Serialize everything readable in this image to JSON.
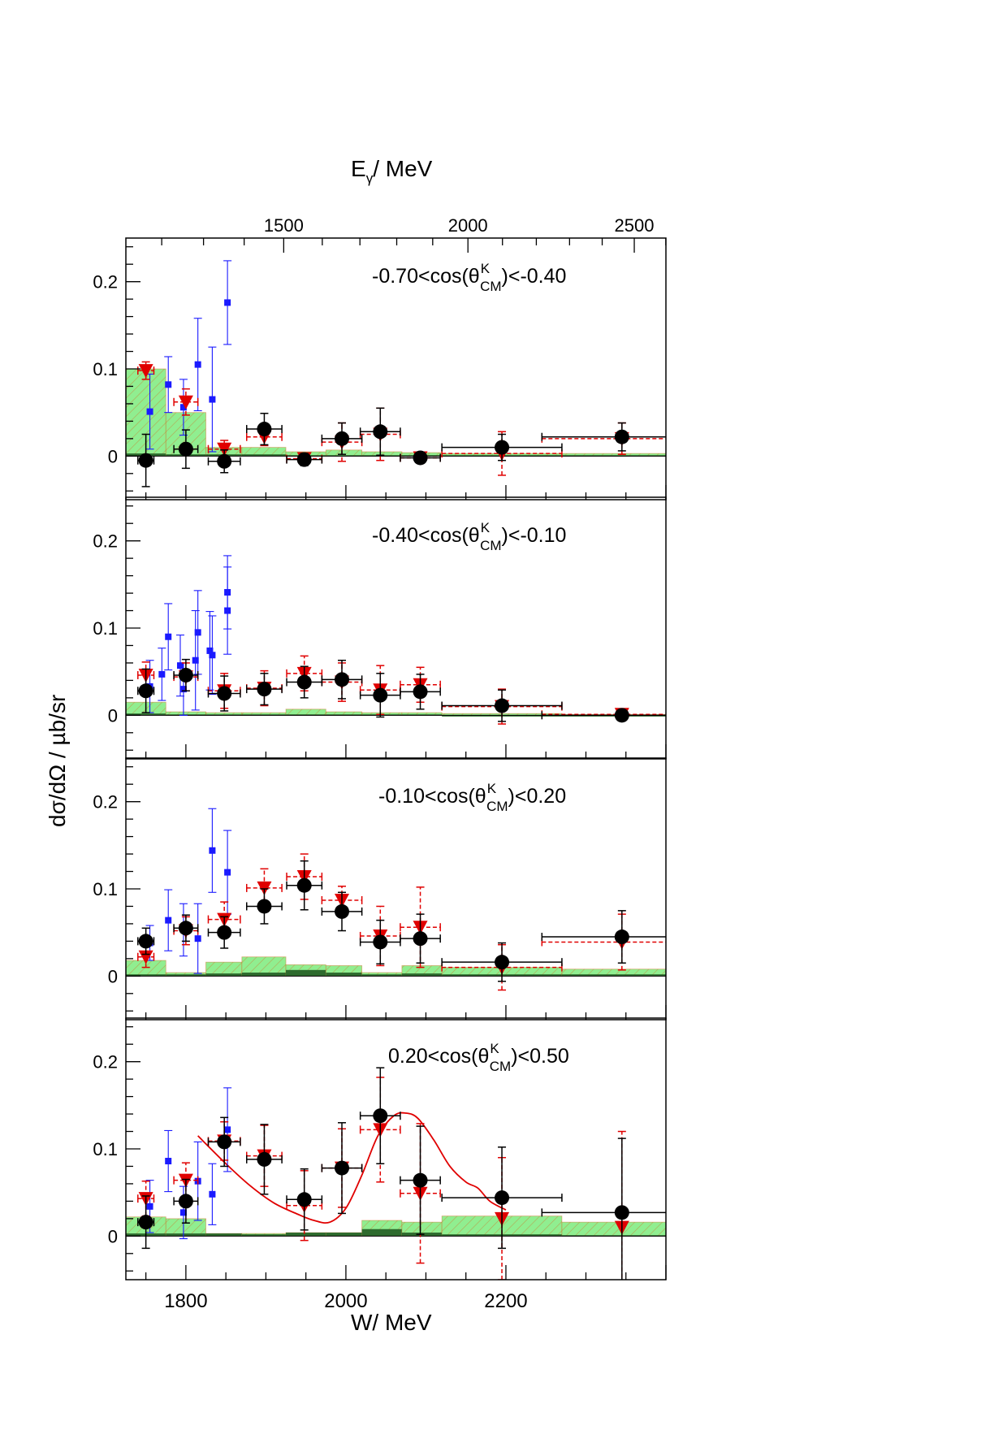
{
  "figure": {
    "top_axis_title_main": "E",
    "top_axis_title_sub": "γ",
    "top_axis_title_rest": "/ MeV",
    "x_axis_title": "W/ MeV",
    "y_axis_title": "dσ/dΩ / µb/sr",
    "top_axis_ticks": [
      "1500",
      "2000",
      "2500"
    ],
    "top_axis_tick_values": [
      1500,
      2000,
      2500
    ],
    "bottom_axis_ticks": [
      "1800",
      "2000",
      "2200"
    ],
    "bottom_axis_tick_values": [
      1800,
      2000,
      2200
    ],
    "y_tick_labels": [
      "0",
      "0.1",
      "0.2"
    ]
  },
  "colors": {
    "black_series": "#000000",
    "red_series": "#e00000",
    "blue_series": "#1a1aff",
    "syst_band_fill": "#90ee90",
    "syst_band_hatch": "#d2691e",
    "syst_band_dark": "#2e6b2e",
    "model_curve": "#e00000"
  },
  "chart_data": [
    {
      "type": "scatter",
      "panel_label": {
        "pre": "-0.70<cos(θ",
        "sup": "K",
        "sub": "CM",
        "post": ")<-0.40"
      },
      "xlim": [
        1725,
        2400
      ],
      "ylim": [
        -0.05,
        0.25
      ],
      "series": [
        {
          "marker": "circle",
          "color": "black",
          "x": [
            1750,
            1800,
            1848,
            1898,
            1948,
            1995,
            2043,
            2093,
            2195,
            2345
          ],
          "y": [
            -0.005,
            0.008,
            -0.006,
            0.031,
            -0.004,
            0.02,
            0.028,
            -0.002,
            0.01,
            0.022
          ],
          "xerr": [
            10,
            15,
            20,
            22,
            22,
            25,
            25,
            25,
            75,
            100
          ],
          "yerr": [
            0.03,
            0.022,
            0.013,
            0.018,
            0.007,
            0.018,
            0.027,
            0.005,
            0.015,
            0.016
          ]
        },
        {
          "marker": "triangle-down",
          "color": "red",
          "x": [
            1750,
            1800,
            1848,
            1898,
            1948,
            1995,
            2043,
            2093,
            2195,
            2345
          ],
          "y": [
            0.098,
            0.062,
            0.008,
            0.022,
            -0.003,
            0.016,
            0.025,
            -0.002,
            0.003,
            0.02
          ],
          "xerr": [
            10,
            15,
            20,
            22,
            22,
            25,
            25,
            25,
            75,
            100
          ],
          "yerr": [
            0.01,
            0.015,
            0.01,
            0.01,
            0.006,
            0.022,
            0.03,
            0.005,
            0.025,
            0.018
          ]
        },
        {
          "marker": "square",
          "color": "blue",
          "x": [
            1755,
            1778,
            1797,
            1815,
            1833,
            1852
          ],
          "y": [
            0.051,
            0.082,
            0.056,
            0.105,
            0.065,
            0.176
          ],
          "yerr": [
            0.043,
            0.032,
            0.032,
            0.053,
            0.06,
            0.048
          ]
        }
      ],
      "syst_band": {
        "edges": [
          1725,
          1775,
          1825,
          1870,
          1925,
          1975,
          2020,
          2070,
          2120,
          2270,
          2400
        ],
        "upper": [
          0.1,
          0.05,
          0.01,
          0.01,
          0.005,
          0.007,
          0.005,
          0.004,
          0.003,
          0.003
        ],
        "dark": [
          0.003,
          0.002,
          0.002,
          0.002,
          0.001,
          0.001,
          0.001,
          0.001,
          0.001,
          0.001
        ]
      },
      "model_curve": null
    },
    {
      "type": "scatter",
      "panel_label": {
        "pre": "-0.40<cos(θ",
        "sup": "K",
        "sub": "CM",
        "post": ")<-0.10"
      },
      "xlim": [
        1725,
        2400
      ],
      "ylim": [
        -0.05,
        0.25
      ],
      "series": [
        {
          "marker": "circle",
          "color": "black",
          "x": [
            1750,
            1800,
            1848,
            1898,
            1948,
            1995,
            2043,
            2093,
            2195,
            2345
          ],
          "y": [
            0.028,
            0.046,
            0.025,
            0.03,
            0.038,
            0.041,
            0.023,
            0.027,
            0.011,
            0.0
          ],
          "xerr": [
            10,
            15,
            20,
            22,
            22,
            25,
            25,
            25,
            75,
            100
          ],
          "yerr": [
            0.025,
            0.018,
            0.02,
            0.018,
            0.018,
            0.022,
            0.025,
            0.02,
            0.018,
            0.006
          ]
        },
        {
          "marker": "triangle-down",
          "color": "red",
          "x": [
            1750,
            1800,
            1848,
            1898,
            1948,
            1995,
            2043,
            2093,
            2195,
            2345
          ],
          "y": [
            0.046,
            0.044,
            0.028,
            0.031,
            0.048,
            0.038,
            0.029,
            0.035,
            0.01,
            0.001
          ],
          "xerr": [
            10,
            15,
            20,
            22,
            22,
            25,
            25,
            25,
            75,
            100
          ],
          "yerr": [
            0.015,
            0.016,
            0.02,
            0.02,
            0.02,
            0.022,
            0.028,
            0.02,
            0.02,
            0.006
          ]
        },
        {
          "marker": "square",
          "color": "blue",
          "x": [
            1755,
            1770,
            1778,
            1793,
            1797,
            1812,
            1815,
            1830,
            1833,
            1852,
            1852
          ],
          "y": [
            0.033,
            0.047,
            0.09,
            0.057,
            0.03,
            0.063,
            0.095,
            0.074,
            0.069,
            0.12,
            0.141
          ],
          "yerr": [
            0.03,
            0.03,
            0.038,
            0.035,
            0.03,
            0.057,
            0.048,
            0.045,
            0.045,
            0.05,
            0.042
          ]
        }
      ],
      "syst_band": {
        "edges": [
          1725,
          1775,
          1825,
          1870,
          1925,
          1975,
          2020,
          2070,
          2120,
          2270,
          2400
        ],
        "upper": [
          0.015,
          0.004,
          0.003,
          0.003,
          0.007,
          0.004,
          0.003,
          0.003,
          0.002,
          0.001
        ],
        "dark": [
          0.002,
          0.001,
          0.001,
          0.001,
          0.001,
          0.001,
          0.001,
          0.001,
          0.0,
          0.0
        ]
      },
      "model_curve": null
    },
    {
      "type": "scatter",
      "panel_label": {
        "pre": "-0.10<cos(θ",
        "sup": "K",
        "sub": "CM",
        "post": ")<0.20"
      },
      "xlim": [
        1725,
        2400
      ],
      "ylim": [
        -0.05,
        0.25
      ],
      "series": [
        {
          "marker": "circle",
          "color": "black",
          "x": [
            1750,
            1800,
            1848,
            1898,
            1948,
            1995,
            2043,
            2093,
            2195,
            2345
          ],
          "y": [
            0.04,
            0.055,
            0.05,
            0.08,
            0.104,
            0.074,
            0.039,
            0.043,
            0.016,
            0.045
          ],
          "xerr": [
            10,
            15,
            20,
            22,
            22,
            25,
            25,
            25,
            75,
            100
          ],
          "yerr": [
            0.015,
            0.015,
            0.018,
            0.02,
            0.028,
            0.022,
            0.025,
            0.028,
            0.022,
            0.03
          ]
        },
        {
          "marker": "triangle-down",
          "color": "red",
          "x": [
            1750,
            1800,
            1848,
            1898,
            1948,
            1995,
            2043,
            2093,
            2195,
            2345
          ],
          "y": [
            0.022,
            0.052,
            0.065,
            0.101,
            0.114,
            0.087,
            0.046,
            0.056,
            0.01,
            0.039
          ],
          "xerr": [
            10,
            15,
            20,
            22,
            22,
            25,
            25,
            25,
            75,
            100
          ],
          "yerr": [
            0.012,
            0.016,
            0.02,
            0.022,
            0.026,
            0.016,
            0.034,
            0.046,
            0.026,
            0.032
          ]
        },
        {
          "marker": "square",
          "color": "blue",
          "x": [
            1755,
            1778,
            1797,
            1815,
            1833,
            1852
          ],
          "y": [
            0.038,
            0.064,
            0.053,
            0.043,
            0.144,
            0.119
          ],
          "yerr": [
            0.02,
            0.035,
            0.03,
            0.04,
            0.048,
            0.048
          ]
        }
      ],
      "syst_band": {
        "edges": [
          1725,
          1775,
          1825,
          1870,
          1925,
          1975,
          2020,
          2070,
          2120,
          2270,
          2400
        ],
        "upper": [
          0.018,
          0.004,
          0.016,
          0.022,
          0.013,
          0.012,
          0.004,
          0.012,
          0.01,
          0.008
        ],
        "dark": [
          0.002,
          0.002,
          0.003,
          0.004,
          0.007,
          0.004,
          0.002,
          0.003,
          0.002,
          0.002
        ]
      },
      "model_curve": null
    },
    {
      "type": "scatter",
      "panel_label": {
        "pre": "0.20<cos(θ",
        "sup": "K",
        "sub": "CM",
        "post": ")<0.50"
      },
      "xlim": [
        1725,
        2400
      ],
      "ylim": [
        -0.05,
        0.25
      ],
      "series": [
        {
          "marker": "circle",
          "color": "black",
          "x": [
            1750,
            1800,
            1848,
            1898,
            1948,
            1995,
            2043,
            2093,
            2195,
            2345
          ],
          "y": [
            0.016,
            0.04,
            0.108,
            0.088,
            0.042,
            0.078,
            0.138,
            0.064,
            0.044,
            0.027
          ],
          "xerr": [
            10,
            15,
            20,
            22,
            22,
            25,
            25,
            25,
            75,
            100
          ],
          "yerr": [
            0.03,
            0.025,
            0.028,
            0.04,
            0.035,
            0.052,
            0.055,
            0.062,
            0.058,
            0.085
          ]
        },
        {
          "marker": "triangle-down",
          "color": "red",
          "x": [
            1750,
            1800,
            1848,
            1898,
            1948,
            1995,
            2043,
            2093,
            2195,
            2345
          ],
          "y": [
            0.043,
            0.064,
            0.109,
            0.092,
            0.035,
            0.078,
            0.122,
            0.049,
            0.02,
            0.01
          ],
          "xerr": [
            10,
            15,
            20,
            22,
            22,
            25,
            25,
            25,
            0,
            0
          ],
          "yerr": [
            0.02,
            0.02,
            0.022,
            0.035,
            0.04,
            0.045,
            0.06,
            0.08,
            0.07,
            0.11
          ]
        },
        {
          "marker": "square",
          "color": "blue",
          "x": [
            1755,
            1778,
            1797,
            1815,
            1833,
            1852
          ],
          "y": [
            0.034,
            0.086,
            0.027,
            0.063,
            0.048,
            0.122
          ],
          "yerr": [
            0.03,
            0.035,
            0.03,
            0.045,
            0.035,
            0.048
          ]
        }
      ],
      "syst_band": {
        "edges": [
          1725,
          1775,
          1825,
          1870,
          1925,
          1975,
          2020,
          2070,
          2120,
          2270,
          2400
        ],
        "upper": [
          0.022,
          0.02,
          0.003,
          0.003,
          0.004,
          0.004,
          0.018,
          0.016,
          0.023,
          0.016
        ],
        "dark": [
          0.003,
          0.003,
          0.003,
          0.002,
          0.004,
          0.004,
          0.008,
          0.004,
          0.002,
          0.001
        ]
      },
      "model_curve": {
        "x": [
          1815,
          1850,
          1880,
          1910,
          1940,
          1960,
          1980,
          2000,
          2020,
          2040,
          2060,
          2075,
          2090,
          2110,
          2130,
          2150,
          2165,
          2180,
          2200
        ],
        "y": [
          0.115,
          0.083,
          0.058,
          0.038,
          0.025,
          0.018,
          0.016,
          0.032,
          0.07,
          0.115,
          0.138,
          0.141,
          0.135,
          0.11,
          0.08,
          0.062,
          0.055,
          0.04,
          0.03
        ]
      }
    }
  ]
}
